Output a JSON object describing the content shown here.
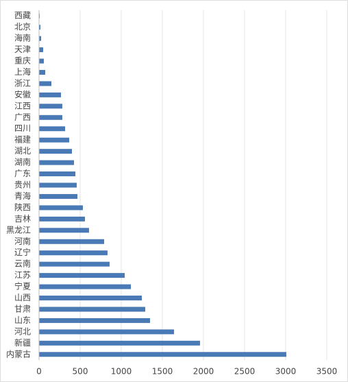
{
  "chart_data": {
    "type": "hbar",
    "orientation": "horizontal",
    "color": "#4a7ab5",
    "grid": true,
    "categories": [
      "西藏",
      "北京",
      "海南",
      "天津",
      "重庆",
      "上海",
      "浙江",
      "安徽",
      "江西",
      "广西",
      "四川",
      "福建",
      "湖北",
      "湖南",
      "广东",
      "贵州",
      "青海",
      "陕西",
      "吉林",
      "黑龙江",
      "河南",
      "辽宁",
      "云南",
      "江苏",
      "宁夏",
      "山西",
      "甘肃",
      "山东",
      "河北",
      "新疆",
      "内蒙古"
    ],
    "values": [
      8,
      17,
      25,
      50,
      58,
      75,
      150,
      267,
      283,
      283,
      317,
      367,
      400,
      425,
      442,
      458,
      467,
      533,
      558,
      608,
      792,
      833,
      858,
      1042,
      1117,
      1250,
      1292,
      1350,
      1642,
      1958,
      3008
    ],
    "xlim": [
      0,
      3500
    ],
    "xticks": [
      0,
      500,
      1000,
      1500,
      2000,
      2500,
      3000,
      3500
    ]
  }
}
